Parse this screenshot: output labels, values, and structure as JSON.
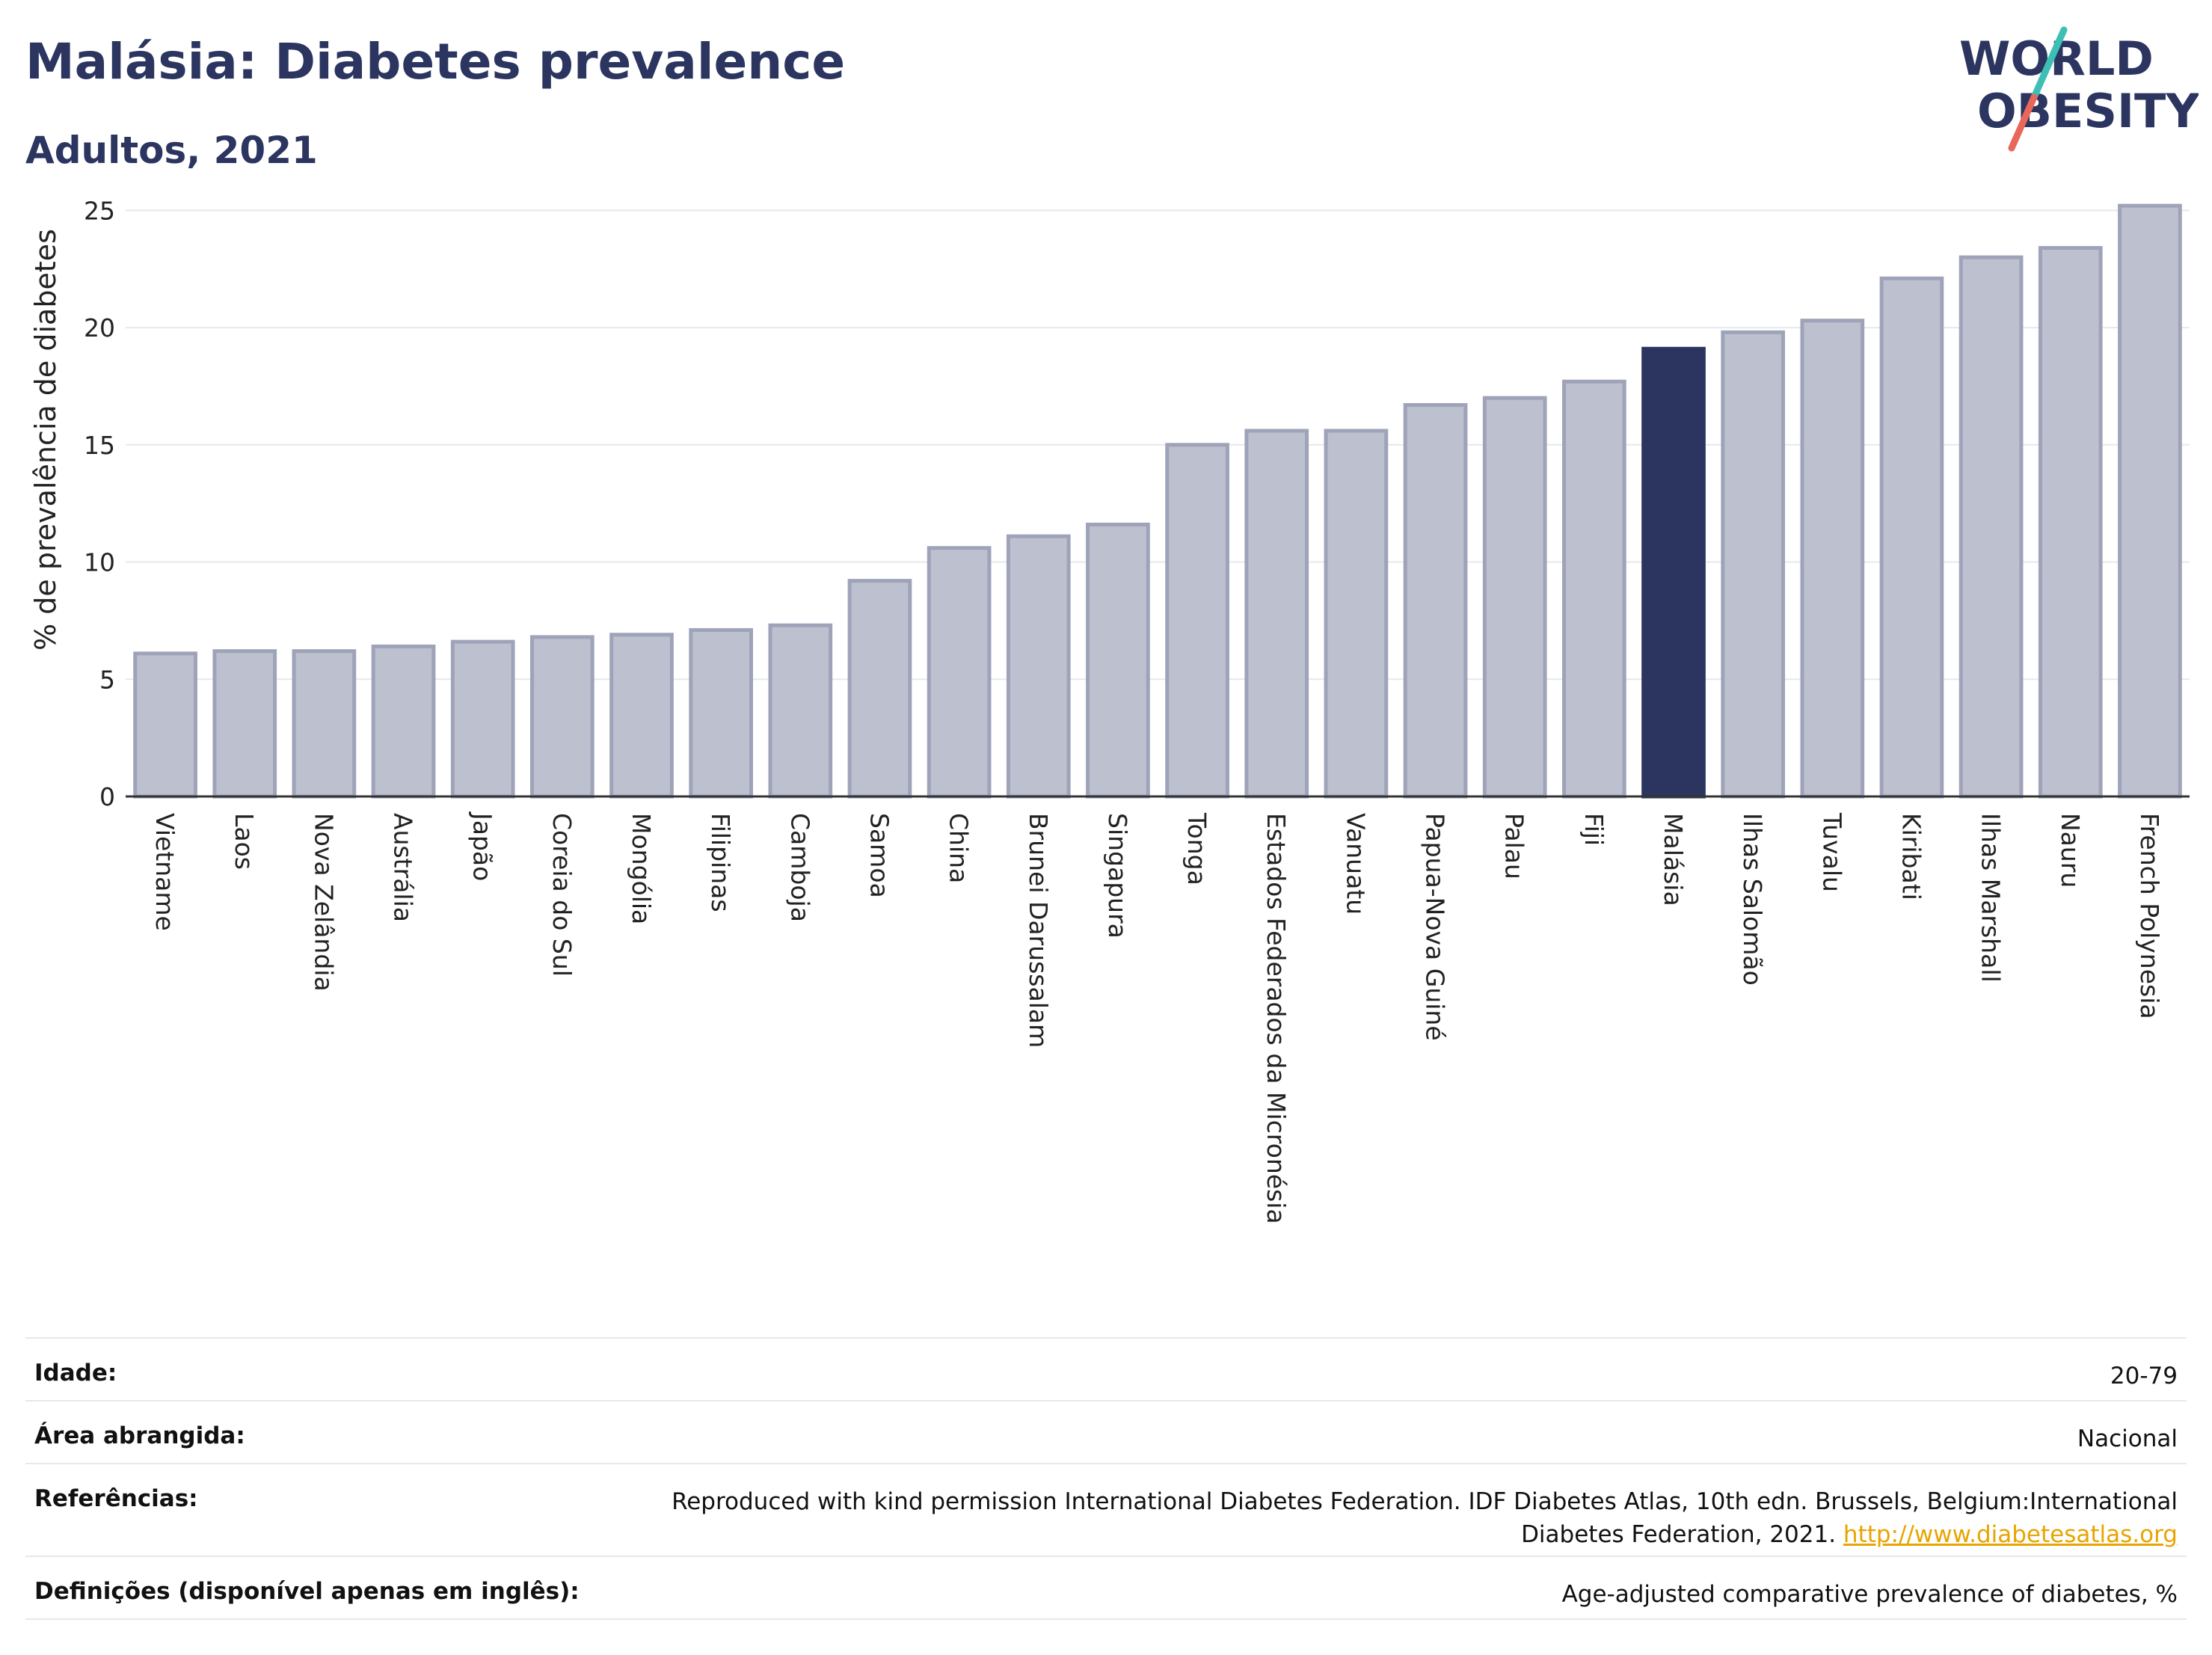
{
  "header": {
    "title": "Malásia: Diabetes prevalence",
    "subtitle": "Adultos, 2021"
  },
  "logo": {
    "line1": "WORLD",
    "line2": "OBESITY",
    "accent_colors": [
      "#3dbfb5",
      "#e8675a"
    ]
  },
  "colors": {
    "bar": "#bcc0cf",
    "bar_stroke": "#9ea3b9",
    "highlight": "#2b3560",
    "grid": "#e6e8ee"
  },
  "chart_data": {
    "type": "bar",
    "ylabel": "% de prevalência de diabetes",
    "ylim": [
      0,
      26
    ],
    "yticks": [
      0,
      5,
      10,
      15,
      20,
      25
    ],
    "highlight": "Malásia",
    "grid": true,
    "categories": [
      "Vietname",
      "Laos",
      "Nova Zelândia",
      "Austrália",
      "Japão",
      "Coreia do Sul",
      "Mongólia",
      "Filipinas",
      "Camboja",
      "Samoa",
      "China",
      "Brunei Darussalam",
      "Singapura",
      "Tonga",
      "Estados Federados da Micronésia",
      "Vanuatu",
      "Papua-Nova Guiné",
      "Palau",
      "Fiji",
      "Malásia",
      "Ilhas Salomão",
      "Tuvalu",
      "Kiribati",
      "Ilhas Marshall",
      "Nauru",
      "French Polynesia"
    ],
    "values": [
      6.1,
      6.2,
      6.2,
      6.4,
      6.6,
      6.8,
      6.9,
      7.1,
      7.3,
      9.2,
      10.6,
      11.1,
      11.6,
      15.0,
      15.6,
      15.6,
      16.7,
      17.0,
      17.7,
      19.1,
      19.8,
      20.3,
      22.1,
      23.0,
      23.4,
      25.2
    ]
  },
  "meta": [
    {
      "key": "Idade:",
      "value": "20-79"
    },
    {
      "key": "Área abrangida:",
      "value": "Nacional"
    },
    {
      "key": "Referências:",
      "value": "Reproduced with kind permission International Diabetes Federation.  IDF Diabetes Atlas, 10th edn. Brussels, Belgium:International Diabetes Federation, 2021. ",
      "link": "http://www.diabetesatlas.org"
    },
    {
      "key": "Definições (disponível apenas em inglês):",
      "value": "Age-adjusted comparative prevalence of diabetes, %"
    }
  ]
}
